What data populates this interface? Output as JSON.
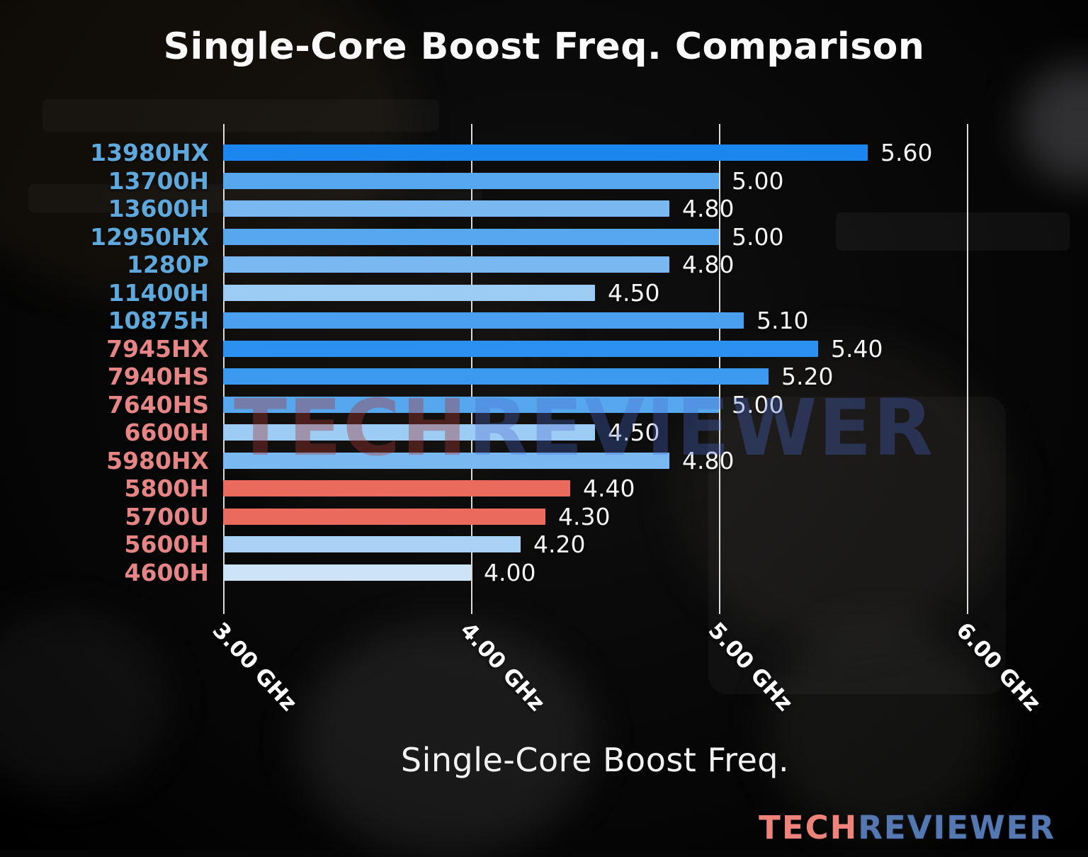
{
  "chart_data": {
    "type": "bar",
    "orientation": "horizontal",
    "title": "Single-Core Boost Freq. Comparison",
    "xlabel": "Single-Core Boost Freq.",
    "x_unit": "GHz",
    "xlim": [
      3.0,
      6.0
    ],
    "grid": true,
    "ticks": [
      {
        "value": 3.0,
        "label": "3.00 GHz"
      },
      {
        "value": 4.0,
        "label": "4.00 GHz"
      },
      {
        "value": 5.0,
        "label": "5.00 GHz"
      },
      {
        "value": 6.0,
        "label": "6.00 GHz"
      }
    ],
    "bars": [
      {
        "label": "13980HX",
        "value": 5.6,
        "display": "5.60",
        "label_color": "#5fa8dc",
        "bar_color": "#1b86ee"
      },
      {
        "label": "13700H",
        "value": 5.0,
        "display": "5.00",
        "label_color": "#5fa8dc",
        "bar_color": "#57a7ee"
      },
      {
        "label": "13600H",
        "value": 4.8,
        "display": "4.80",
        "label_color": "#5fa8dc",
        "bar_color": "#79b8f0"
      },
      {
        "label": "12950HX",
        "value": 5.0,
        "display": "5.00",
        "label_color": "#5fa8dc",
        "bar_color": "#57a7ee"
      },
      {
        "label": "1280P",
        "value": 4.8,
        "display": "4.80",
        "label_color": "#5fa8dc",
        "bar_color": "#79b8f0"
      },
      {
        "label": "11400H",
        "value": 4.5,
        "display": "4.50",
        "label_color": "#5fa8dc",
        "bar_color": "#9ccbf3"
      },
      {
        "label": "10875H",
        "value": 5.1,
        "display": "5.10",
        "label_color": "#5fa8dc",
        "bar_color": "#4aa0ef"
      },
      {
        "label": "7945HX",
        "value": 5.4,
        "display": "5.40",
        "label_color": "#e58585",
        "bar_color": "#2b90ef"
      },
      {
        "label": "7940HS",
        "value": 5.2,
        "display": "5.20",
        "label_color": "#e58585",
        "bar_color": "#3c99f0"
      },
      {
        "label": "7640HS",
        "value": 5.0,
        "display": "5.00",
        "label_color": "#e58585",
        "bar_color": "#57a7ee"
      },
      {
        "label": "6600H",
        "value": 4.5,
        "display": "4.50",
        "label_color": "#e58585",
        "bar_color": "#9ccbf3"
      },
      {
        "label": "5980HX",
        "value": 4.8,
        "display": "4.80",
        "label_color": "#e58585",
        "bar_color": "#79b8f0"
      },
      {
        "label": "5800H",
        "value": 4.4,
        "display": "4.40",
        "label_color": "#e58585",
        "bar_color": "#ea6a5e"
      },
      {
        "label": "5700U",
        "value": 4.3,
        "display": "4.30",
        "label_color": "#e58585",
        "bar_color": "#ea6a5e"
      },
      {
        "label": "5600H",
        "value": 4.2,
        "display": "4.20",
        "label_color": "#e58585",
        "bar_color": "#aad2f5"
      },
      {
        "label": "4600H",
        "value": 4.0,
        "display": "4.00",
        "label_color": "#e58585",
        "bar_color": "#cde3f8"
      }
    ]
  },
  "watermark": {
    "tech": "TECH",
    "reviewer": "REVIEWER"
  },
  "logo": {
    "tech": "TECH",
    "reviewer": "REVIEWER"
  },
  "colors": {
    "grid": "#ffffff",
    "value_text": "#f5f5f5",
    "intel_label": "#5fa8dc",
    "amd_label": "#e58585",
    "highlight_bar": "#ea6a5e"
  }
}
